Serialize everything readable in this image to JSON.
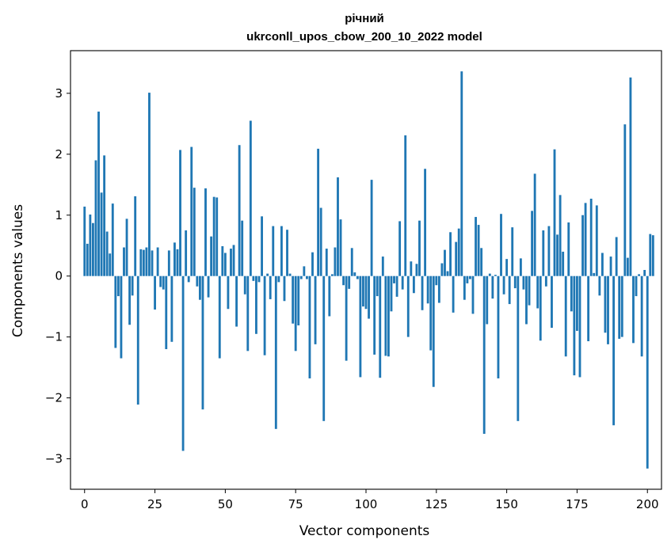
{
  "chart_data": {
    "type": "bar",
    "title": "річний",
    "subtitle": "ukrconll_upos_cbow_200_10_2022 model",
    "xlabel": "Vector components",
    "ylabel": "Components values",
    "xlim": [
      -5,
      205
    ],
    "ylim": [
      -3.5,
      3.7
    ],
    "xticks": [
      0,
      25,
      50,
      75,
      100,
      125,
      150,
      175,
      200
    ],
    "yticks": [
      -3,
      -2,
      -1,
      0,
      1,
      2,
      3
    ],
    "grid": false,
    "color": "#1f77b4",
    "values": [
      1.14,
      0.53,
      1.01,
      0.87,
      1.9,
      2.7,
      1.37,
      1.98,
      0.73,
      0.37,
      1.19,
      -1.18,
      -0.33,
      -1.35,
      0.47,
      0.94,
      -0.8,
      -0.32,
      1.31,
      -2.11,
      0.44,
      0.43,
      0.47,
      3.01,
      0.42,
      -0.55,
      0.47,
      -0.18,
      -0.22,
      -1.2,
      0.42,
      -1.08,
      0.55,
      0.44,
      2.07,
      -2.87,
      0.75,
      -0.1,
      2.12,
      1.45,
      -0.17,
      -0.39,
      -2.19,
      1.44,
      -0.35,
      0.65,
      1.3,
      1.29,
      -1.35,
      0.49,
      0.38,
      -0.54,
      0.45,
      0.51,
      -0.83,
      2.15,
      0.91,
      -0.3,
      -1.23,
      2.55,
      -0.08,
      -0.95,
      -0.1,
      0.98,
      -1.3,
      0.04,
      -0.38,
      0.82,
      -2.51,
      -0.1,
      0.82,
      -0.41,
      0.76,
      0.04,
      -0.78,
      -1.23,
      -0.81,
      -0.05,
      0.16,
      -0.05,
      -1.68,
      0.39,
      -1.12,
      2.09,
      1.12,
      -2.38,
      0.45,
      -0.66,
      0.03,
      0.47,
      1.62,
      0.93,
      -0.15,
      -1.39,
      -0.21,
      0.46,
      0.06,
      -0.05,
      -1.66,
      -0.5,
      -0.54,
      -0.7,
      1.58,
      -1.29,
      -0.33,
      -1.67,
      0.32,
      -1.31,
      -1.32,
      -0.58,
      -0.12,
      -0.34,
      0.9,
      -0.22,
      2.31,
      -1.0,
      0.24,
      -0.28,
      0.2,
      0.91,
      -0.56,
      1.76,
      -0.45,
      -1.22,
      -1.82,
      -0.15,
      -0.44,
      0.21,
      0.43,
      0.08,
      0.72,
      -0.6,
      0.56,
      0.78,
      3.36,
      -0.39,
      -0.12,
      -0.05,
      -0.62,
      0.97,
      0.84,
      0.46,
      -2.59,
      -0.79,
      0.04,
      -0.37,
      0.02,
      -1.68,
      1.02,
      -0.3,
      0.28,
      -0.46,
      0.8,
      -0.2,
      -2.38,
      0.29,
      -0.22,
      -0.79,
      -0.48,
      1.07,
      1.68,
      -0.53,
      -1.06,
      0.75,
      -0.17,
      0.82,
      -0.85,
      2.08,
      0.68,
      1.33,
      0.4,
      -1.32,
      0.88,
      -0.58,
      -1.63,
      -0.9,
      -1.66,
      1.0,
      1.2,
      -1.07,
      1.27,
      0.05,
      1.16,
      -0.32,
      0.38,
      -0.93,
      -1.12,
      0.32,
      -2.45,
      0.64,
      -1.03,
      -1.0,
      2.49,
      0.3,
      3.26,
      -1.1,
      -0.33,
      0.03,
      -1.32,
      0.1,
      -3.16,
      0.69,
      0.67
    ]
  }
}
